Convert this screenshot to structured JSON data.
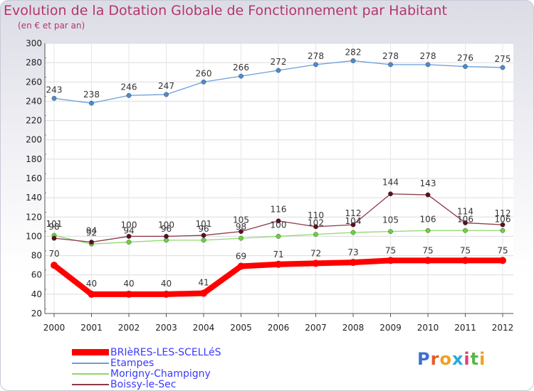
{
  "chart_data": {
    "type": "line",
    "title": "Evolution de la Dotation Globale de Fonctionnement par Habitant",
    "subtitle": "(en € et par an)",
    "xlabel": "",
    "ylabel": "",
    "ylim": [
      20,
      300
    ],
    "yticks": [
      20,
      40,
      60,
      80,
      100,
      120,
      140,
      160,
      180,
      200,
      220,
      240,
      260,
      280,
      300
    ],
    "categories": [
      "2000",
      "2001",
      "2002",
      "2003",
      "2004",
      "2005",
      "2006",
      "2007",
      "2008",
      "2009",
      "2010",
      "2011",
      "2012"
    ],
    "grid": true,
    "series": [
      {
        "name": "BRIèRES-LES-SCELLéS",
        "color": "#ff0000",
        "marker": "#ff0000",
        "width": 8,
        "values": [
          70,
          40,
          40,
          40,
          41,
          69,
          71,
          72,
          73,
          75,
          75,
          75,
          75
        ]
      },
      {
        "name": "Etampes",
        "color": "#6a9fd8",
        "marker": "#4a8bd0",
        "width": 1.3,
        "values": [
          243,
          238,
          246,
          247,
          260,
          266,
          272,
          278,
          282,
          278,
          278,
          276,
          275
        ]
      },
      {
        "name": "Morigny-Champigny",
        "color": "#8fd86b",
        "marker": "#6bd13b",
        "width": 1.3,
        "values": [
          101,
          92,
          94,
          96,
          96,
          98,
          100,
          102,
          104,
          105,
          106,
          106,
          106
        ]
      },
      {
        "name": "Boissy-le-Sec",
        "color": "#8b3a4a",
        "marker": "#5a1020",
        "width": 1.3,
        "values": [
          98,
          94,
          100,
          100,
          101,
          105,
          116,
          110,
          112,
          144,
          143,
          114,
          112
        ]
      }
    ]
  },
  "logo": {
    "text": "Proxiti"
  }
}
